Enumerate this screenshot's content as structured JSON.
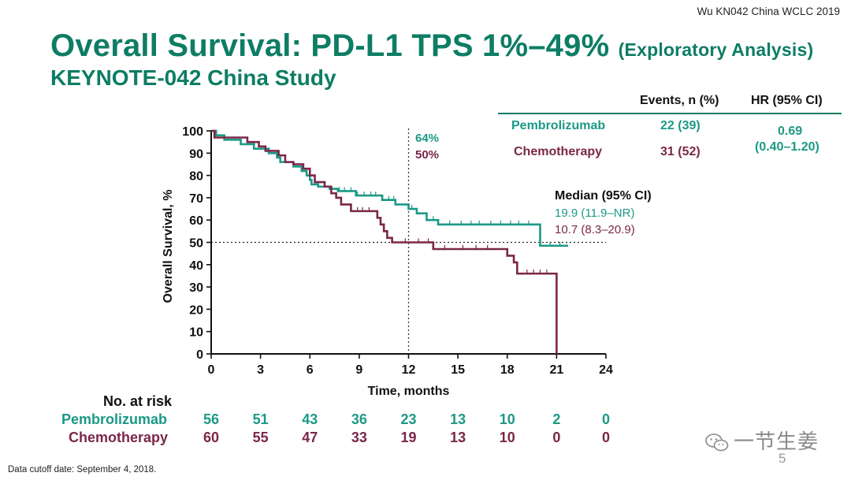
{
  "citation": "Wu KN042 China WCLC 2019",
  "title": {
    "main": "Overall Survival: PD-L1 TPS 1%–49%",
    "qualifier": "(Exploratory Analysis)",
    "subtitle": "KEYNOTE-042 China Study"
  },
  "hr_table": {
    "header_events": "Events, n (%)",
    "header_hr": "HR (95% CI)",
    "rows": [
      {
        "arm": "Pembrolizumab",
        "events": "22 (39)"
      },
      {
        "arm": "Chemotherapy",
        "events": "31 (52)"
      }
    ],
    "hr_value": "0.69",
    "hr_ci": "(0.40–1.20)"
  },
  "annotations": {
    "month12_pem": "64%",
    "month12_chemo": "50%",
    "median_header": "Median (95% CI)",
    "median_pem": "19.9 (11.9–NR)",
    "median_chemo": "10.7 (8.3–20.9)"
  },
  "chart_data": {
    "type": "line",
    "subtype": "kaplan-meier",
    "xlabel": "Time, months",
    "ylabel": "Overall Survival, %",
    "xlim": [
      0,
      24
    ],
    "ylim": [
      0,
      100
    ],
    "xticks": [
      0,
      3,
      6,
      9,
      12,
      15,
      18,
      21,
      24
    ],
    "yticks": [
      0,
      10,
      20,
      30,
      40,
      50,
      60,
      70,
      80,
      90,
      100
    ],
    "reference_lines": {
      "median_y": 50,
      "landmark_x": 12
    },
    "series": [
      {
        "name": "Pembrolizumab",
        "color": "#1b9986",
        "steps": [
          [
            0,
            100
          ],
          [
            0.3,
            98
          ],
          [
            0.8,
            96
          ],
          [
            1.8,
            94
          ],
          [
            2.6,
            92
          ],
          [
            3.5,
            90
          ],
          [
            4.0,
            88
          ],
          [
            4.2,
            86
          ],
          [
            5.0,
            84
          ],
          [
            5.5,
            82
          ],
          [
            5.8,
            80
          ],
          [
            6.0,
            78
          ],
          [
            6.1,
            76
          ],
          [
            6.5,
            75
          ],
          [
            7.2,
            74
          ],
          [
            7.7,
            73
          ],
          [
            8.8,
            71
          ],
          [
            10.4,
            69
          ],
          [
            11.2,
            67
          ],
          [
            12.0,
            65
          ],
          [
            12.5,
            63
          ],
          [
            13.1,
            60
          ],
          [
            13.8,
            58
          ],
          [
            20.0,
            48.5
          ],
          [
            21.7,
            48.5
          ]
        ],
        "censor_marks": [
          [
            7.8,
            73
          ],
          [
            8.1,
            73
          ],
          [
            8.5,
            73
          ],
          [
            8.9,
            71
          ],
          [
            9.3,
            71
          ],
          [
            9.7,
            71
          ],
          [
            10.0,
            71
          ],
          [
            10.8,
            69
          ],
          [
            11.1,
            69
          ],
          [
            12.2,
            65
          ],
          [
            13.5,
            60
          ],
          [
            14.5,
            58
          ],
          [
            15.2,
            58
          ],
          [
            15.8,
            58
          ],
          [
            16.3,
            58
          ],
          [
            17.0,
            58
          ],
          [
            17.6,
            58
          ],
          [
            18.2,
            58
          ],
          [
            18.7,
            58
          ],
          [
            19.3,
            58
          ],
          [
            20.6,
            48.5
          ],
          [
            21.2,
            48.5
          ]
        ]
      },
      {
        "name": "Chemotherapy",
        "color": "#7a2748",
        "steps": [
          [
            0,
            100
          ],
          [
            0.2,
            97
          ],
          [
            2.2,
            95
          ],
          [
            2.9,
            93
          ],
          [
            3.3,
            91
          ],
          [
            4.1,
            89
          ],
          [
            4.5,
            86
          ],
          [
            5.0,
            85
          ],
          [
            5.6,
            83
          ],
          [
            6.0,
            80
          ],
          [
            6.3,
            77
          ],
          [
            6.9,
            75
          ],
          [
            7.3,
            72
          ],
          [
            7.6,
            70
          ],
          [
            7.9,
            67
          ],
          [
            8.5,
            64
          ],
          [
            10.1,
            61
          ],
          [
            10.3,
            58
          ],
          [
            10.5,
            55
          ],
          [
            10.7,
            52
          ],
          [
            11.0,
            50
          ],
          [
            13.5,
            47
          ],
          [
            18.0,
            44
          ],
          [
            18.4,
            41
          ],
          [
            18.6,
            36
          ],
          [
            21.0,
            0
          ]
        ],
        "censor_marks": [
          [
            8.9,
            64
          ],
          [
            9.2,
            64
          ],
          [
            9.6,
            64
          ],
          [
            11.8,
            50
          ],
          [
            12.6,
            50
          ],
          [
            13.2,
            50
          ],
          [
            14.2,
            47
          ],
          [
            15.3,
            47
          ],
          [
            16.1,
            47
          ],
          [
            16.8,
            47
          ],
          [
            19.2,
            36
          ],
          [
            19.6,
            36
          ],
          [
            20.0,
            36
          ],
          [
            20.4,
            36
          ]
        ]
      }
    ]
  },
  "risk_table": {
    "title": "No. at risk",
    "times": [
      0,
      3,
      6,
      9,
      12,
      15,
      18,
      21,
      24
    ],
    "rows": [
      {
        "name": "Pembrolizumab",
        "counts": [
          "56",
          "51",
          "43",
          "36",
          "23",
          "13",
          "10",
          "2",
          "0"
        ]
      },
      {
        "name": "Chemotherapy",
        "counts": [
          "60",
          "55",
          "47",
          "33",
          "19",
          "13",
          "10",
          "0",
          "0"
        ]
      }
    ]
  },
  "footer": "Data cutoff date: September 4, 2018.",
  "watermark": "一节生姜",
  "page_number": "5"
}
